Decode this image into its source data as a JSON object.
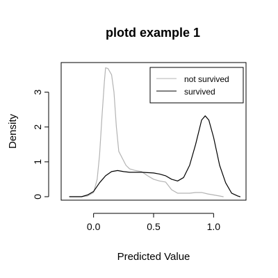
{
  "chart_data": {
    "type": "line",
    "title": "plotd example 1",
    "xlabel": "Predicted Value",
    "ylabel": "Density",
    "xlim": [
      -0.27,
      1.27
    ],
    "ylim": [
      -0.1,
      3.85
    ],
    "x_ticks": [
      {
        "value": 0.0,
        "label": "0.0"
      },
      {
        "value": 0.5,
        "label": "0.5"
      },
      {
        "value": 1.0,
        "label": "1.0"
      }
    ],
    "y_ticks": [
      {
        "value": 0,
        "label": "0"
      },
      {
        "value": 1,
        "label": "1"
      },
      {
        "value": 2,
        "label": "2"
      },
      {
        "value": 3,
        "label": "3"
      }
    ],
    "grid": false,
    "legend_position": "top-right",
    "series": [
      {
        "name": "not survived",
        "color": "#b3b3b3",
        "points": [
          [
            -0.2,
            0.0
          ],
          [
            -0.1,
            0.0
          ],
          [
            -0.05,
            0.02
          ],
          [
            0.0,
            0.12
          ],
          [
            0.03,
            0.5
          ],
          [
            0.05,
            1.2
          ],
          [
            0.07,
            2.3
          ],
          [
            0.09,
            3.3
          ],
          [
            0.1,
            3.7
          ],
          [
            0.12,
            3.68
          ],
          [
            0.15,
            3.5
          ],
          [
            0.17,
            3.0
          ],
          [
            0.19,
            2.0
          ],
          [
            0.21,
            1.3
          ],
          [
            0.24,
            1.1
          ],
          [
            0.27,
            0.9
          ],
          [
            0.3,
            0.8
          ],
          [
            0.35,
            0.75
          ],
          [
            0.4,
            0.72
          ],
          [
            0.45,
            0.6
          ],
          [
            0.5,
            0.5
          ],
          [
            0.55,
            0.45
          ],
          [
            0.6,
            0.42
          ],
          [
            0.65,
            0.2
          ],
          [
            0.7,
            0.1
          ],
          [
            0.75,
            0.1
          ],
          [
            0.8,
            0.1
          ],
          [
            0.85,
            0.12
          ],
          [
            0.9,
            0.12
          ],
          [
            0.95,
            0.08
          ],
          [
            1.0,
            0.05
          ],
          [
            1.05,
            0.02
          ],
          [
            1.08,
            0.0
          ]
        ]
      },
      {
        "name": "survived",
        "color": "#000000",
        "points": [
          [
            -0.2,
            0.0
          ],
          [
            -0.1,
            0.0
          ],
          [
            -0.05,
            0.05
          ],
          [
            0.0,
            0.15
          ],
          [
            0.05,
            0.4
          ],
          [
            0.1,
            0.6
          ],
          [
            0.15,
            0.72
          ],
          [
            0.2,
            0.75
          ],
          [
            0.25,
            0.72
          ],
          [
            0.3,
            0.7
          ],
          [
            0.35,
            0.7
          ],
          [
            0.4,
            0.7
          ],
          [
            0.45,
            0.69
          ],
          [
            0.5,
            0.68
          ],
          [
            0.55,
            0.65
          ],
          [
            0.6,
            0.6
          ],
          [
            0.65,
            0.5
          ],
          [
            0.7,
            0.45
          ],
          [
            0.75,
            0.55
          ],
          [
            0.8,
            0.9
          ],
          [
            0.85,
            1.5
          ],
          [
            0.9,
            2.2
          ],
          [
            0.93,
            2.32
          ],
          [
            0.96,
            2.2
          ],
          [
            1.0,
            1.7
          ],
          [
            1.05,
            0.9
          ],
          [
            1.1,
            0.4
          ],
          [
            1.15,
            0.1
          ],
          [
            1.2,
            0.02
          ],
          [
            1.22,
            0.0
          ]
        ]
      }
    ]
  }
}
